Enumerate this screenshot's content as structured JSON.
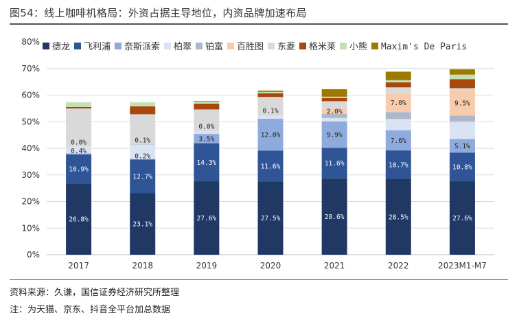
{
  "header": {
    "title": "图54：线上咖啡机格局：外资占据主导地位，内资品牌加速布局"
  },
  "footer": {
    "source": "资料来源：久谦，国信证券经济研究所整理",
    "note": "注：为天猫、京东、抖音全平台加总数据"
  },
  "chart_data": {
    "type": "bar",
    "stacked": true,
    "title": "",
    "xlabel": "",
    "ylabel": "",
    "ylim": [
      0,
      80
    ],
    "yticks": [
      "0%",
      "10%",
      "20%",
      "30%",
      "40%",
      "50%",
      "60%",
      "70%",
      "80%"
    ],
    "ytick_values": [
      0,
      10,
      20,
      30,
      40,
      50,
      60,
      70,
      80
    ],
    "grid": true,
    "legend_position": "top",
    "categories": [
      "2017",
      "2018",
      "2019",
      "2020",
      "2021",
      "2022",
      "2023M1-M7"
    ],
    "series": [
      {
        "name": "德龙",
        "color": "#1f3864",
        "label_color": "#ffffff",
        "values": [
          26.8,
          23.1,
          27.6,
          27.5,
          28.6,
          28.5,
          27.6
        ],
        "labels": [
          "26.8%",
          "23.1%",
          "27.6%",
          "27.5%",
          "28.6%",
          "28.5%",
          "27.6%"
        ]
      },
      {
        "name": "飞利浦",
        "color": "#2f5597",
        "label_color": "#ffffff",
        "values": [
          10.9,
          12.7,
          14.3,
          11.6,
          11.6,
          10.7,
          10.8
        ],
        "labels": [
          "10.9%",
          "12.7%",
          "14.3%",
          "11.6%",
          "11.6%",
          "10.7%",
          "10.8%"
        ]
      },
      {
        "name": "奈斯派索",
        "color": "#8faadc",
        "label_color": "#222222",
        "values": [
          0.4,
          0.2,
          3.5,
          12.0,
          9.9,
          7.6,
          5.1
        ],
        "labels": [
          "0.4%",
          "0.2%",
          "3.5%",
          "12.0%",
          "9.9%",
          "7.6%",
          "5.1%"
        ]
      },
      {
        "name": "柏翠",
        "color": "#dae3f3",
        "label_color": "#222222",
        "values": [
          2.5,
          5.3,
          1.2,
          1.3,
          1.3,
          4.2,
          6.5
        ],
        "labels": [
          "",
          "",
          "",
          "",
          "",
          "",
          ""
        ]
      },
      {
        "name": "铂富",
        "color": "#adb9ca",
        "label_color": "#222222",
        "values": [
          0.0,
          0.1,
          0.0,
          0.1,
          1.5,
          2.6,
          2.3
        ],
        "labels": [
          "0.0%",
          "0.1%",
          "0.0%",
          "0.1%",
          "",
          "",
          ""
        ]
      },
      {
        "name": "百胜图",
        "color": "#f8cbad",
        "label_color": "#222222",
        "values": [
          0.0,
          0.0,
          0.0,
          0.0,
          2.0,
          7.0,
          9.5
        ],
        "labels": [
          "",
          "",
          "",
          "",
          "2.0%",
          "7.0%",
          "9.5%"
        ]
      },
      {
        "name": "东菱",
        "color": "#d9d9d9",
        "label_color": "#222222",
        "values": [
          14.4,
          11.4,
          8.0,
          6.8,
          2.8,
          2.3,
          0.8
        ],
        "labels": [
          "",
          "",
          "",
          "",
          "",
          "",
          ""
        ]
      },
      {
        "name": "格米莱",
        "color": "#a8470e",
        "label_color": "#ffffff",
        "values": [
          0.5,
          3.0,
          2.2,
          1.4,
          1.2,
          1.9,
          3.4
        ],
        "labels": [
          "",
          "",
          "",
          "",
          "",
          "",
          ""
        ]
      },
      {
        "name": "小熊",
        "color": "#c5e0b4",
        "label_color": "#222222",
        "values": [
          1.8,
          1.5,
          0.8,
          0.5,
          0.5,
          0.8,
          1.7
        ],
        "labels": [
          "",
          "",
          "",
          "",
          "",
          "",
          ""
        ]
      },
      {
        "name": "Maxim's De Paris",
        "color": "#9c7a00",
        "label_color": "#ffffff",
        "values": [
          0.0,
          0.0,
          0.2,
          0.5,
          2.8,
          3.2,
          2.0
        ],
        "labels": [
          "",
          "",
          "",
          "",
          "",
          "",
          ""
        ]
      }
    ]
  }
}
